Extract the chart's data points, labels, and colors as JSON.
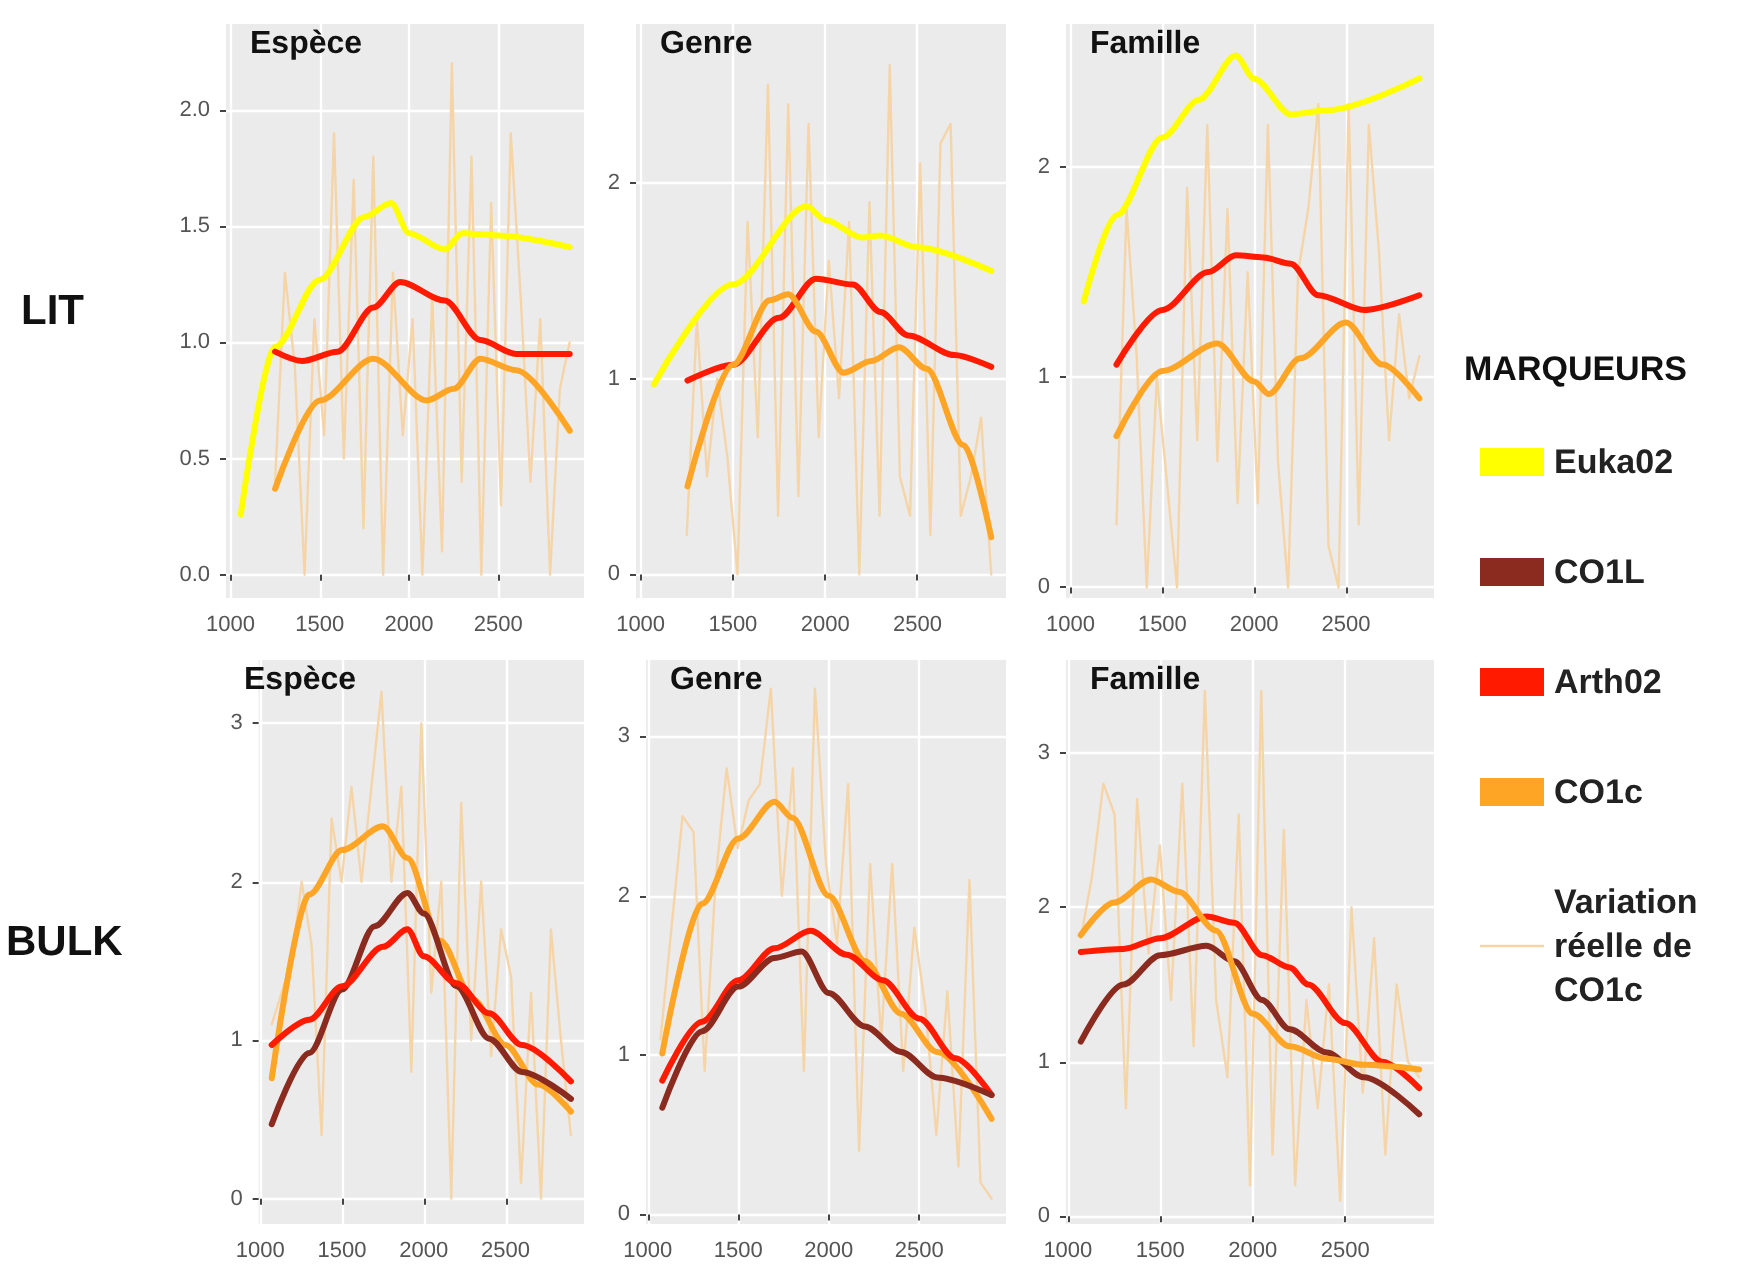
{
  "chart_data": [
    {
      "type": "line",
      "title": "Espèce",
      "ylabel": "LIT",
      "xlim": [
        975,
        2980
      ],
      "xticks": [
        1000,
        1500,
        2000,
        2500
      ],
      "ylim": [
        -0.1,
        2.37
      ],
      "yticks": [
        {
          "value": 0,
          "label": "0.0"
        },
        0.5,
        {
          "value": 1,
          "label": "1.0"
        },
        1.5,
        {
          "value": 2,
          "label": "2.0"
        }
      ],
      "grid": true,
      "marker": "none",
      "series": [
        {
          "color": "#f5d5a8",
          "x": [
            1250,
            1305,
            1360,
            1415,
            1470,
            1525,
            1580,
            1635,
            1690,
            1745,
            1800,
            1855,
            1910,
            1965,
            2020,
            2075,
            2130,
            2185,
            2240,
            2295,
            2350,
            2405,
            2460,
            2515,
            2570,
            2625,
            2680,
            2735,
            2790,
            2845,
            2900
          ],
          "values": [
            0.4,
            1.3,
            0.9,
            0.0,
            1.1,
            0.6,
            1.9,
            0.5,
            1.7,
            0.2,
            1.8,
            0.0,
            1.3,
            0.6,
            1.1,
            0.0,
            1.2,
            0.1,
            2.2,
            0.4,
            1.8,
            0.0,
            1.6,
            0.3,
            1.9,
            1.2,
            0.4,
            1.1,
            0.0,
            0.8,
            1.0
          ]
        },
        {
          "color": "#ffff00",
          "x": [
            1058,
            1250,
            1500,
            1750,
            1900,
            2000,
            2200,
            2300,
            2500,
            2900
          ],
          "values": [
            0.26,
            0.98,
            1.27,
            1.54,
            1.6,
            1.47,
            1.4,
            1.47,
            1.46,
            1.41
          ]
        },
        {
          "color": "#ff1a00",
          "x": [
            1250,
            1400,
            1600,
            1800,
            1950,
            2200,
            2400,
            2600,
            2900
          ],
          "values": [
            0.96,
            0.92,
            0.96,
            1.15,
            1.26,
            1.18,
            1.01,
            0.95,
            0.95
          ]
        },
        {
          "color": "#ffa526",
          "x": [
            1250,
            1500,
            1800,
            2100,
            2250,
            2400,
            2600,
            2900
          ],
          "values": [
            0.37,
            0.75,
            0.93,
            0.75,
            0.8,
            0.93,
            0.88,
            0.62
          ]
        }
      ]
    },
    {
      "type": "line",
      "title": "Genre",
      "xlim": [
        975,
        2980
      ],
      "xticks": [
        1000,
        1500,
        2000,
        2500
      ],
      "ylim": [
        -0.12,
        2.81
      ],
      "yticks": [
        0,
        1,
        2
      ],
      "grid": true,
      "marker": "none",
      "series": [
        {
          "color": "#f5d5a8",
          "x": [
            1250,
            1305,
            1360,
            1415,
            1470,
            1525,
            1580,
            1635,
            1690,
            1745,
            1800,
            1855,
            1910,
            1965,
            2020,
            2075,
            2130,
            2185,
            2240,
            2295,
            2350,
            2405,
            2460,
            2515,
            2570,
            2625,
            2680,
            2735,
            2790,
            2845,
            2900
          ],
          "values": [
            0.2,
            1.3,
            0.5,
            1.0,
            0.6,
            0.0,
            1.8,
            0.7,
            2.5,
            0.3,
            2.4,
            0.4,
            2.3,
            0.7,
            1.6,
            0.9,
            1.8,
            0.0,
            1.9,
            0.3,
            2.6,
            0.5,
            0.3,
            2.1,
            0.2,
            2.2,
            2.3,
            0.3,
            0.5,
            0.8,
            0.0
          ]
        },
        {
          "color": "#ffff00",
          "x": [
            1072,
            1500,
            1900,
            2000,
            2200,
            2300,
            2500,
            2900
          ],
          "values": [
            0.97,
            1.48,
            1.88,
            1.81,
            1.72,
            1.73,
            1.67,
            1.55
          ]
        },
        {
          "color": "#ff1a00",
          "x": [
            1254,
            1500,
            1750,
            1950,
            2150,
            2300,
            2450,
            2700,
            2900
          ],
          "values": [
            0.99,
            1.07,
            1.31,
            1.51,
            1.48,
            1.34,
            1.22,
            1.12,
            1.06
          ]
        },
        {
          "color": "#ffa526",
          "x": [
            1254,
            1500,
            1700,
            1800,
            1950,
            2100,
            2250,
            2400,
            2550,
            2750,
            2900
          ],
          "values": [
            0.45,
            1.07,
            1.4,
            1.43,
            1.24,
            1.03,
            1.09,
            1.16,
            1.05,
            0.66,
            0.19
          ]
        }
      ]
    },
    {
      "type": "line",
      "title": "Famille",
      "xlim": [
        975,
        2980
      ],
      "xticks": [
        1000,
        1500,
        2000,
        2500
      ],
      "ylim": [
        -0.05,
        2.68
      ],
      "yticks": [
        0,
        1,
        2
      ],
      "grid": true,
      "marker": "none",
      "series": [
        {
          "color": "#f5d5a8",
          "x": [
            1250,
            1305,
            1360,
            1415,
            1470,
            1525,
            1580,
            1635,
            1690,
            1745,
            1800,
            1855,
            1910,
            1965,
            2020,
            2075,
            2130,
            2185,
            2240,
            2295,
            2350,
            2405,
            2460,
            2515,
            2570,
            2625,
            2680,
            2735,
            2790,
            2845,
            2900
          ],
          "values": [
            0.3,
            1.8,
            1.1,
            0.0,
            1.0,
            0.5,
            0.0,
            1.9,
            0.7,
            2.2,
            0.6,
            1.8,
            0.4,
            1.5,
            0.4,
            2.2,
            0.6,
            0.0,
            1.5,
            1.8,
            2.3,
            0.2,
            0.0,
            2.3,
            0.3,
            2.2,
            1.6,
            0.7,
            1.3,
            0.9,
            1.1
          ]
        },
        {
          "color": "#ffff00",
          "x": [
            1072,
            1250,
            1500,
            1700,
            1900,
            2000,
            2200,
            2400,
            2900
          ],
          "values": [
            1.36,
            1.77,
            2.14,
            2.32,
            2.53,
            2.42,
            2.25,
            2.27,
            2.42
          ]
        },
        {
          "color": "#ff1a00",
          "x": [
            1250,
            1500,
            1750,
            1900,
            2050,
            2200,
            2350,
            2600,
            2900
          ],
          "values": [
            1.06,
            1.32,
            1.5,
            1.58,
            1.57,
            1.54,
            1.39,
            1.32,
            1.39
          ]
        },
        {
          "color": "#ffa526",
          "x": [
            1250,
            1500,
            1800,
            2000,
            2080,
            2250,
            2500,
            2700,
            2900
          ],
          "values": [
            0.72,
            1.03,
            1.16,
            0.98,
            0.92,
            1.09,
            1.26,
            1.06,
            0.9
          ]
        }
      ]
    },
    {
      "type": "line",
      "title": "Espèce",
      "ylabel": "BULK",
      "xlim": [
        990,
        2980
      ],
      "xticks": [
        1000,
        1500,
        2000,
        2500
      ],
      "ylim": [
        -0.16,
        3.4
      ],
      "yticks": [
        0,
        1,
        2,
        3
      ],
      "grid": true,
      "marker": "none",
      "series": [
        {
          "color": "#f5d5a8",
          "x": [
            1070,
            1131,
            1192,
            1253,
            1314,
            1375,
            1436,
            1497,
            1558,
            1619,
            1680,
            1741,
            1802,
            1863,
            1924,
            1985,
            2046,
            2107,
            2168,
            2229,
            2290,
            2351,
            2412,
            2473,
            2534,
            2595,
            2656,
            2717,
            2778,
            2839,
            2900
          ],
          "values": [
            1.1,
            1.3,
            1.5,
            2.0,
            1.6,
            0.4,
            2.4,
            2.0,
            2.6,
            2.0,
            2.6,
            3.2,
            2.0,
            2.6,
            0.8,
            3.0,
            1.3,
            2.0,
            0.0,
            2.5,
            1.0,
            2.0,
            0.9,
            1.7,
            1.4,
            0.1,
            1.3,
            0.0,
            1.7,
            1.0,
            0.4
          ]
        },
        {
          "color": "#ffa526",
          "x": [
            1070,
            1300,
            1500,
            1750,
            1900,
            2100,
            2300,
            2500,
            2700,
            2900
          ],
          "values": [
            0.76,
            1.92,
            2.2,
            2.35,
            2.15,
            1.63,
            1.26,
            0.97,
            0.72,
            0.55
          ]
        },
        {
          "color": "#8b2a1e",
          "x": [
            1070,
            1300,
            1500,
            1700,
            1900,
            2000,
            2200,
            2400,
            2600,
            2900
          ],
          "values": [
            0.47,
            0.92,
            1.32,
            1.72,
            1.93,
            1.8,
            1.34,
            1.01,
            0.8,
            0.63
          ]
        },
        {
          "color": "#ff1a00",
          "x": [
            1070,
            1300,
            1500,
            1750,
            1900,
            2000,
            2200,
            2400,
            2600,
            2900
          ],
          "values": [
            0.97,
            1.13,
            1.34,
            1.59,
            1.7,
            1.53,
            1.36,
            1.17,
            0.97,
            0.74
          ]
        }
      ]
    },
    {
      "type": "line",
      "title": "Genre",
      "xlim": [
        990,
        2980
      ],
      "xticks": [
        1000,
        1500,
        2000,
        2500
      ],
      "ylim": [
        -0.06,
        3.48
      ],
      "yticks": [
        0,
        1,
        2,
        3
      ],
      "grid": true,
      "marker": "none",
      "series": [
        {
          "color": "#f5d5a8",
          "x": [
            1070,
            1131,
            1192,
            1253,
            1314,
            1375,
            1436,
            1497,
            1558,
            1619,
            1680,
            1741,
            1802,
            1863,
            1924,
            1985,
            2046,
            2107,
            2168,
            2229,
            2290,
            2351,
            2412,
            2473,
            2534,
            2595,
            2656,
            2717,
            2778,
            2839,
            2900
          ],
          "values": [
            1.1,
            1.8,
            2.5,
            2.4,
            0.9,
            2.1,
            2.8,
            2.3,
            2.6,
            2.7,
            3.3,
            2.0,
            2.8,
            0.9,
            3.3,
            2.2,
            1.7,
            2.7,
            0.4,
            2.2,
            1.1,
            2.2,
            0.9,
            1.8,
            1.3,
            0.5,
            1.4,
            0.3,
            2.1,
            0.2,
            0.1
          ]
        },
        {
          "color": "#ffa526",
          "x": [
            1080,
            1300,
            1500,
            1700,
            1800,
            2000,
            2200,
            2400,
            2600,
            2900
          ],
          "values": [
            1.01,
            1.95,
            2.36,
            2.59,
            2.49,
            2.0,
            1.59,
            1.26,
            1.02,
            0.6
          ]
        },
        {
          "color": "#ff1a00",
          "x": [
            1080,
            1300,
            1500,
            1700,
            1900,
            2100,
            2300,
            2500,
            2700,
            2900
          ],
          "values": [
            0.84,
            1.21,
            1.47,
            1.67,
            1.78,
            1.63,
            1.47,
            1.23,
            0.98,
            0.75
          ]
        },
        {
          "color": "#8b2a1e",
          "x": [
            1080,
            1300,
            1500,
            1700,
            1850,
            2000,
            2200,
            2400,
            2600,
            2900
          ],
          "values": [
            0.67,
            1.15,
            1.43,
            1.61,
            1.65,
            1.39,
            1.18,
            1.02,
            0.86,
            0.75
          ]
        }
      ]
    },
    {
      "type": "line",
      "title": "Famille",
      "xlim": [
        990,
        2980
      ],
      "xticks": [
        1000,
        1500,
        2000,
        2500
      ],
      "ylim": [
        -0.05,
        3.6
      ],
      "yticks": [
        0,
        1,
        2,
        3
      ],
      "grid": true,
      "marker": "none",
      "legend": "right",
      "legend_title": "MARQUEURS",
      "series": [
        {
          "name": "Euka02",
          "color": "#ffff00"
        },
        {
          "name": "CO1L",
          "color": "#8b2a1e",
          "x": [
            1070,
            1300,
            1500,
            1750,
            1900,
            2050,
            2200,
            2400,
            2600,
            2900
          ],
          "values": [
            1.13,
            1.5,
            1.69,
            1.75,
            1.65,
            1.4,
            1.21,
            1.06,
            0.9,
            0.66
          ]
        },
        {
          "name": "Arth02",
          "color": "#ff1a00",
          "x": [
            1070,
            1300,
            1500,
            1750,
            1900,
            2050,
            2200,
            2300,
            2500,
            2700,
            2900
          ],
          "values": [
            1.71,
            1.73,
            1.8,
            1.94,
            1.9,
            1.69,
            1.61,
            1.5,
            1.25,
            1.0,
            0.83
          ]
        },
        {
          "name": "CO1c",
          "color": "#ffa526",
          "x": [
            1070,
            1250,
            1450,
            1600,
            1800,
            2000,
            2200,
            2400,
            2600,
            2900
          ],
          "values": [
            1.82,
            2.03,
            2.18,
            2.1,
            1.85,
            1.31,
            1.1,
            1.02,
            0.98,
            0.95
          ]
        },
        {
          "name": "Variation réelle de CO1c",
          "color": "#f5d5a8",
          "x": [
            1070,
            1131,
            1192,
            1253,
            1314,
            1375,
            1436,
            1497,
            1558,
            1619,
            1680,
            1741,
            1802,
            1863,
            1924,
            1985,
            2046,
            2107,
            2168,
            2229,
            2290,
            2351,
            2412,
            2473,
            2534,
            2595,
            2656,
            2717,
            2778,
            2839,
            2900
          ],
          "values": [
            1.8,
            2.2,
            2.8,
            2.6,
            0.7,
            2.7,
            1.7,
            2.4,
            1.4,
            2.8,
            1.1,
            3.4,
            1.4,
            0.9,
            2.6,
            0.2,
            3.4,
            0.4,
            2.5,
            0.2,
            1.4,
            0.7,
            1.5,
            0.1,
            2.0,
            0.8,
            1.8,
            0.4,
            1.5,
            1.0,
            0.9
          ]
        }
      ]
    }
  ]
}
